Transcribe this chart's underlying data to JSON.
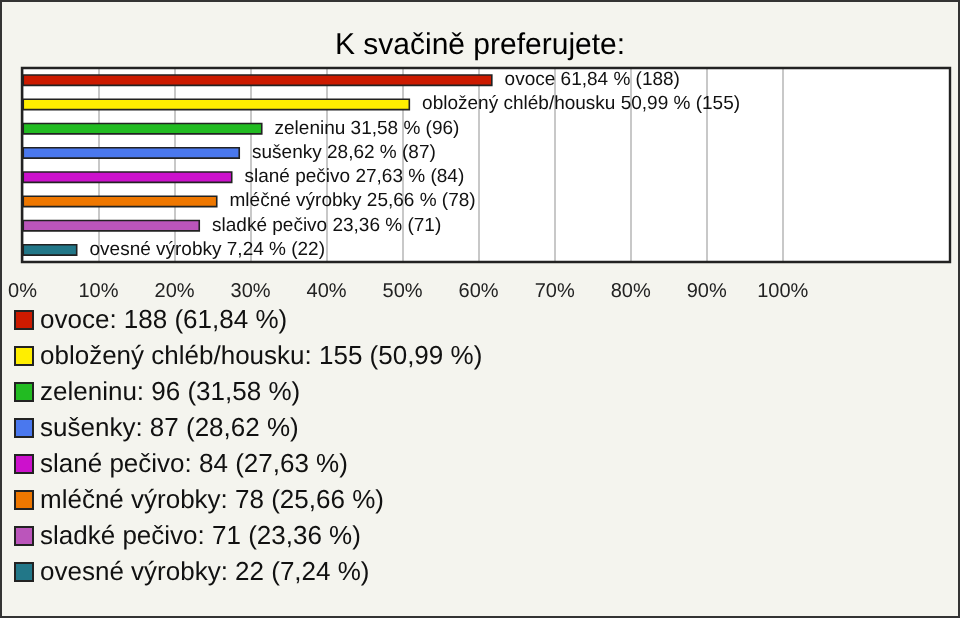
{
  "chart_data": {
    "type": "bar",
    "orientation": "horizontal",
    "title": "K svačině preferujete:",
    "categories": [
      "ovoce",
      "obložený chléb/housku",
      "zeleninu",
      "sušenky",
      "slané pečivo",
      "mléčné výrobky",
      "sladké pečivo",
      "ovesné výrobky"
    ],
    "values": [
      61.84,
      50.99,
      31.58,
      28.62,
      27.63,
      25.66,
      23.36,
      7.24
    ],
    "colors": [
      "#cc1a00",
      "#ffee00",
      "#22bb22",
      "#4a78ee",
      "#cc11cc",
      "#ee7700",
      "#bb55bb",
      "#227788"
    ],
    "value_labels": [
      "61,84 % (188)",
      "50,99 % (155)",
      "31,58 % (96)",
      "28,62 % (87)",
      "27,63 % (84)",
      "25,66 % (78)",
      "23,36 % (71)",
      "7,24 % (22)"
    ],
    "annotations": [
      "ovoce: 188 (61,84 %)",
      "obložený chléb/housku: 155 (50,99 %)",
      "zeleninu: 96 (31,58 %)",
      "sušenky: 87 (28,62 %)",
      "slané pečivo: 84 (27,63 %)",
      "mléčné výrobky: 78 (25,66 %)",
      "sladké pečivo: 71 (23,36 %)",
      "ovesné výrobky: 22 (7,24 %)"
    ],
    "xlim": [
      0,
      122
    ],
    "xticks": [
      {
        "value": 0,
        "label": "0%"
      },
      {
        "value": 10,
        "label": "10%"
      },
      {
        "value": 20,
        "label": "20%"
      },
      {
        "value": 30,
        "label": "30%"
      },
      {
        "value": 40,
        "label": "40%"
      },
      {
        "value": 50,
        "label": "50%"
      },
      {
        "value": 60,
        "label": "60%"
      },
      {
        "value": 70,
        "label": "70%"
      },
      {
        "value": 80,
        "label": "80%"
      },
      {
        "value": 90,
        "label": "90%"
      },
      {
        "value": 100,
        "label": "100%"
      }
    ],
    "grid": "x",
    "tick_labels": "x"
  }
}
